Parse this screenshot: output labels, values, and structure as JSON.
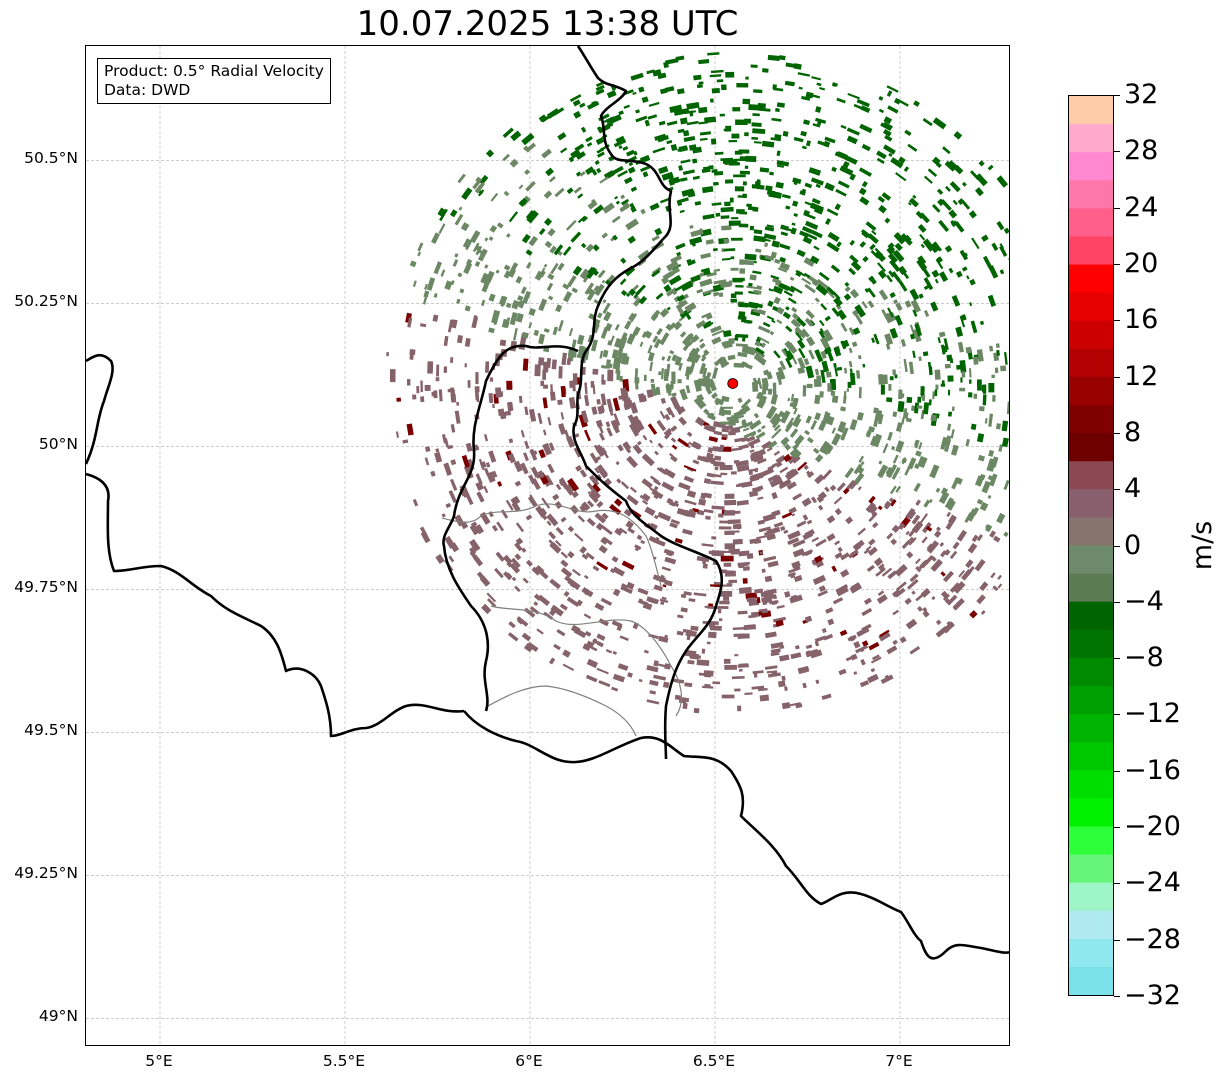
{
  "title": "10.07.2025 13:38 UTC",
  "info_box": {
    "line1": "Product: 0.5° Radial Velocity",
    "line2": "Data: DWD"
  },
  "map": {
    "lon_range": [
      4.8,
      7.3
    ],
    "lat_range": [
      48.95,
      50.7
    ],
    "x_ticks": [
      "5°E",
      "5.5°E",
      "6°E",
      "6.5°E",
      "7°E"
    ],
    "y_ticks": [
      "50.5°N",
      "50.25°N",
      "50°N",
      "49.75°N",
      "49.5°N",
      "49.25°N",
      "49°N"
    ],
    "radar_site": {
      "lon": 6.548,
      "lat": 50.11,
      "color": "#ff0000"
    },
    "velocity_regions": [
      {
        "name": "outbound-receding-north",
        "color": "#006400"
      },
      {
        "name": "near-zero",
        "color": "#6b8763"
      },
      {
        "name": "inbound-approaching-south",
        "color": "#86626a"
      },
      {
        "name": "strong-inbound",
        "color": "#7a0000"
      }
    ]
  },
  "colorbar": {
    "unit": "m/s",
    "tick_labels": [
      "32",
      "28",
      "24",
      "20",
      "16",
      "12",
      "8",
      "4",
      "0",
      "−4",
      "−8",
      "−12",
      "−16",
      "−20",
      "−24",
      "−28",
      "−32"
    ],
    "colors_top_to_bottom": [
      "#ffccaa",
      "#ffaacc",
      "#ff88d0",
      "#ff77aa",
      "#ff5f8a",
      "#ff4466",
      "#ff0000",
      "#e60000",
      "#cc0000",
      "#b30000",
      "#990000",
      "#800000",
      "#6e0000",
      "#8b4a53",
      "#8a5f6d",
      "#87746f",
      "#6d8a6d",
      "#5b7b55",
      "#006400",
      "#007300",
      "#008a00",
      "#009e00",
      "#00b300",
      "#00c800",
      "#00de00",
      "#00f000",
      "#2dff3a",
      "#66f57a",
      "#9ef5c8",
      "#aeeaf0",
      "#8ee8ee",
      "#7ae2e8"
    ]
  }
}
